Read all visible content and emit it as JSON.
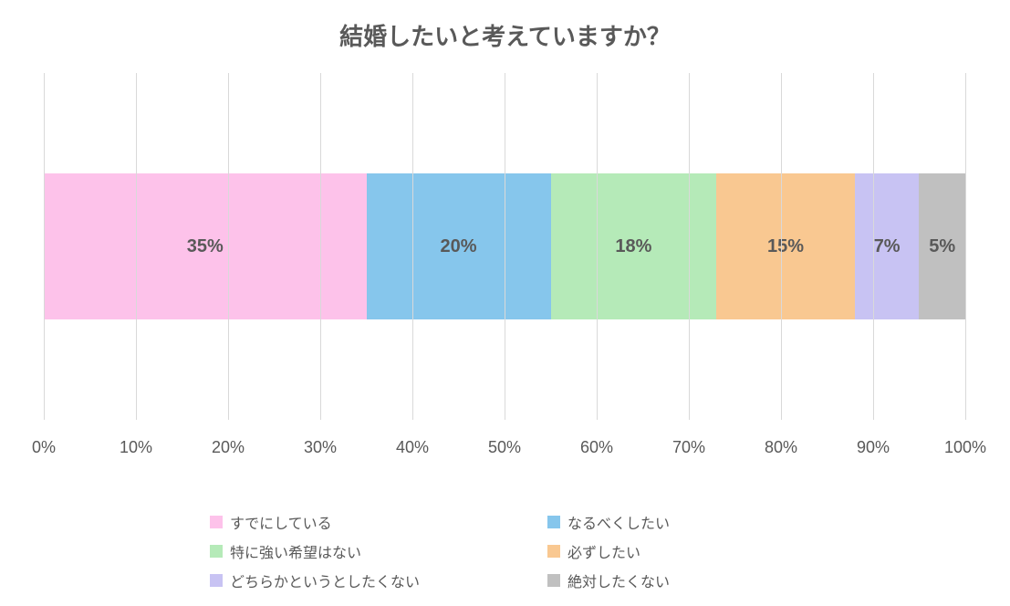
{
  "chart": {
    "type": "stacked-bar-100",
    "title": "結婚したいと考えていますか？",
    "title_fontsize": 26,
    "title_color": "#595959",
    "background_color": "#ffffff",
    "grid_color": "#d9d9d9",
    "tick_label_color": "#595959",
    "tick_label_fontsize": 18,
    "value_label_fontsize": 20,
    "value_label_color": "#595959",
    "legend_fontsize": 16,
    "legend_text_color": "#595959",
    "x_ticks": [
      "0%",
      "10%",
      "20%",
      "30%",
      "40%",
      "50%",
      "60%",
      "70%",
      "80%",
      "90%",
      "100%"
    ],
    "segments": [
      {
        "label": "すでにしている",
        "value": 35,
        "display": "35%",
        "color": "#fdc2ea"
      },
      {
        "label": "なるべくしたい",
        "value": 20,
        "display": "20%",
        "color": "#86c6ec"
      },
      {
        "label": "特に強い希望はない",
        "value": 18,
        "display": "18%",
        "color": "#b5eab8"
      },
      {
        "label": "必ずしたい",
        "value": 15,
        "display": "15%",
        "color": "#f9c891"
      },
      {
        "label": "どちらかというとしたくない",
        "value": 7,
        "display": "7%",
        "color": "#c8c3f3"
      },
      {
        "label": "絶対したくない",
        "value": 5,
        "display": "5%",
        "color": "#c0c0c0"
      }
    ]
  }
}
